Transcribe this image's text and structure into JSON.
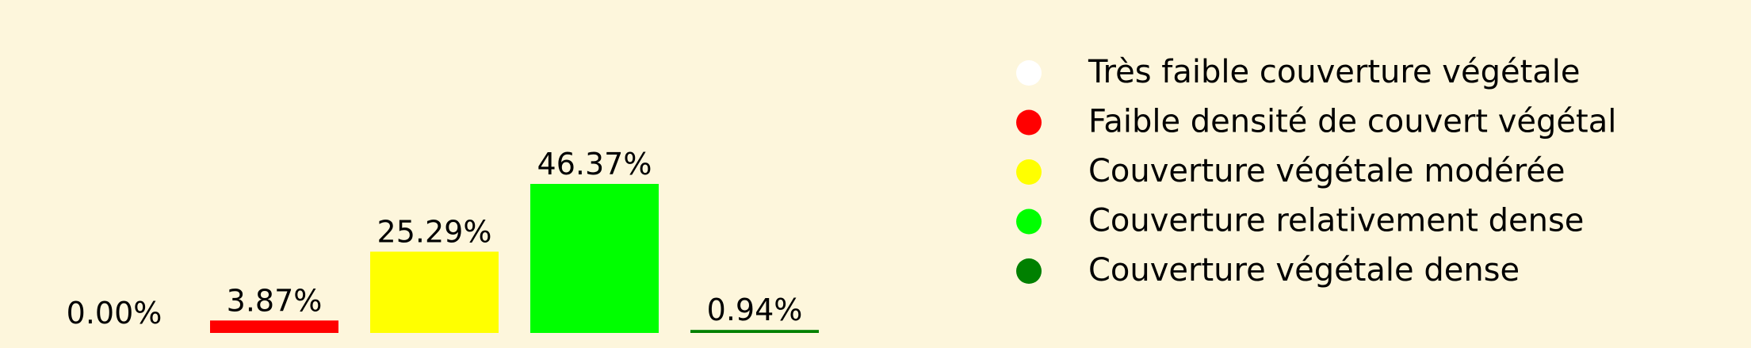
{
  "background_color": "#fdf6dc",
  "chart_data": {
    "type": "bar",
    "title": "",
    "xlabel": "",
    "ylabel": "",
    "ylim": [
      0,
      46.37
    ],
    "grid": false,
    "legend_placement": "right",
    "categories": [
      "Très faible couverture végétale",
      "Faible densité de couvert végétal",
      "Couverture végétale modérée",
      "Couverture relativement dense",
      "Couverture végétale dense"
    ],
    "values": [
      0.0,
      3.87,
      25.29,
      46.37,
      0.94
    ],
    "data_labels": [
      "0.00%",
      "3.87%",
      "25.29%",
      "46.37%",
      "0.94%"
    ],
    "colors": [
      "#ffffff",
      "#ff0000",
      "#ffff00",
      "#00ff00",
      "#008000"
    ],
    "legend": [
      {
        "label": "Très faible couverture végétale",
        "color": "#ffffff"
      },
      {
        "label": "Faible densité de couvert végétal",
        "color": "#ff0000"
      },
      {
        "label": "Couverture végétale modérée",
        "color": "#ffff00"
      },
      {
        "label": "Couverture relativement dense",
        "color": "#00ff00"
      },
      {
        "label": "Couverture végétale dense",
        "color": "#008000"
      }
    ]
  }
}
